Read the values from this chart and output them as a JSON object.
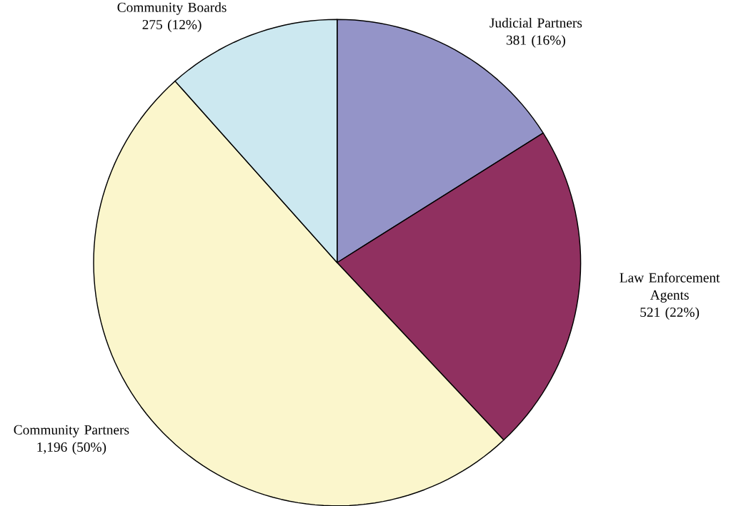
{
  "chart_data": {
    "type": "pie",
    "categories": [
      "Judicial Partners",
      "Law Enforcement Agents",
      "Community Partners",
      "Community Boards"
    ],
    "values": [
      381,
      521,
      1196,
      275
    ],
    "value_labels": [
      "381 (16%)",
      "521 (22%)",
      "1,196 (50%)",
      "275 (12%)"
    ],
    "colors": [
      "#9494c8",
      "#903060",
      "#fbf6cc",
      "#cce8f0"
    ]
  }
}
